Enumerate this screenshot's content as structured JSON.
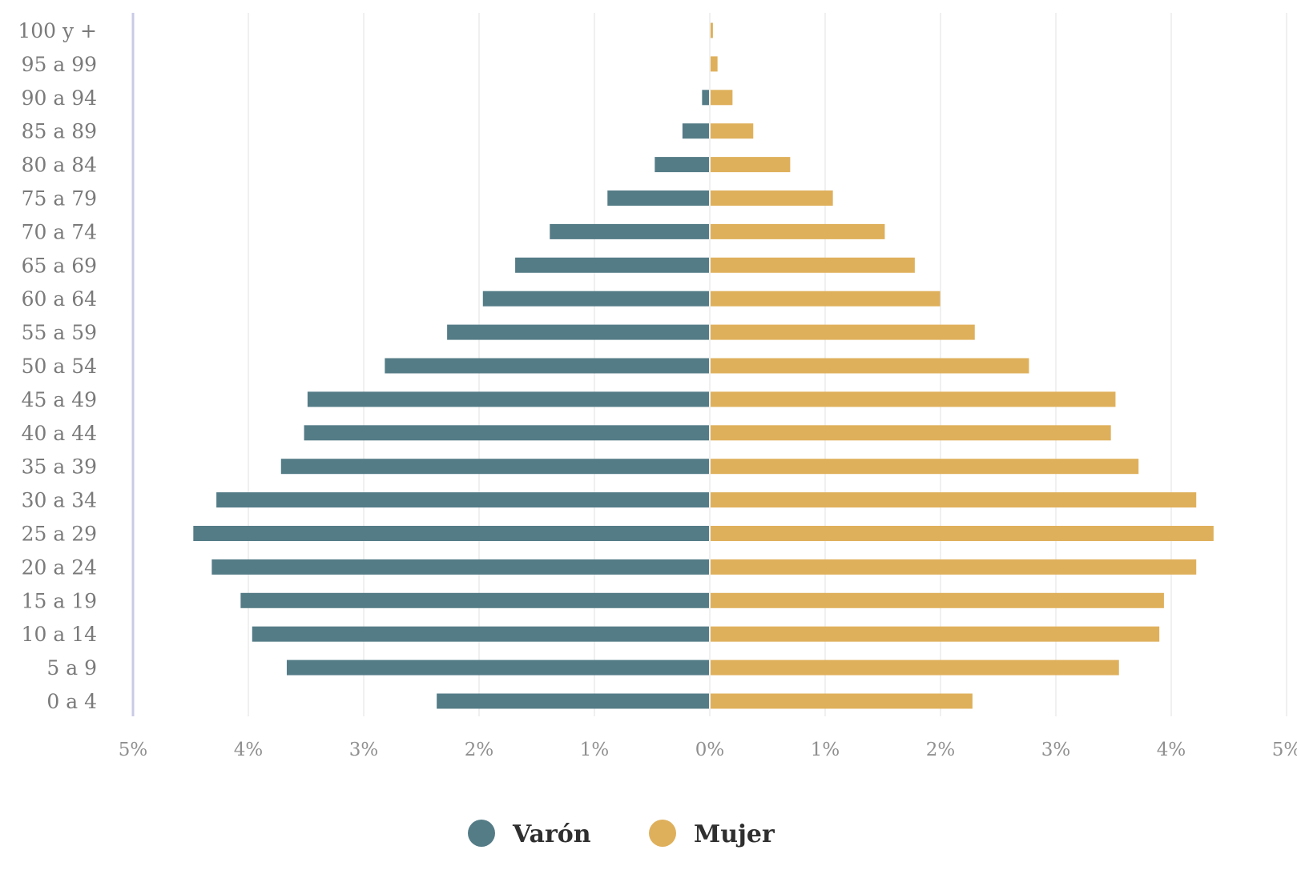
{
  "chart_data": {
    "type": "bar",
    "orientation": "horizontal",
    "categories": [
      "0 a 4",
      "5 a 9",
      "10 a 14",
      "15 a 19",
      "20 a 24",
      "25 a 29",
      "30 a 34",
      "35 a 39",
      "40 a 44",
      "45 a 49",
      "50 a 54",
      "55 a 59",
      "60 a 64",
      "65 a 69",
      "70 a 74",
      "75 a 79",
      "80 a 84",
      "85 a 89",
      "90 a 94",
      "95 a 99",
      "100 y +"
    ],
    "series": [
      {
        "name": "Varón",
        "color": "#547c87",
        "direction": "left",
        "values": [
          2.36,
          3.66,
          3.96,
          4.06,
          4.31,
          4.47,
          4.27,
          3.71,
          3.51,
          3.48,
          2.81,
          2.27,
          1.96,
          1.68,
          1.38,
          0.88,
          0.47,
          0.23,
          0.06,
          0.0,
          0.0
        ]
      },
      {
        "name": "Mujer",
        "color": "#dfb05b",
        "direction": "right",
        "values": [
          2.27,
          3.54,
          3.89,
          3.93,
          4.21,
          4.36,
          4.21,
          3.71,
          3.47,
          3.51,
          2.76,
          2.29,
          1.99,
          1.77,
          1.51,
          1.06,
          0.69,
          0.37,
          0.19,
          0.06,
          0.02
        ]
      }
    ],
    "x_tick_labels": [
      "5%",
      "4%",
      "3%",
      "2%",
      "1%",
      "0%",
      "1%",
      "2%",
      "3%",
      "4%",
      "5%"
    ],
    "xlim": [
      -5,
      5
    ],
    "unit": "%",
    "grid": true,
    "legend": {
      "position": "bottom-center",
      "items": [
        {
          "label": "Varón",
          "color": "#547c87"
        },
        {
          "label": "Mujer",
          "color": "#dfb05b"
        }
      ]
    }
  }
}
